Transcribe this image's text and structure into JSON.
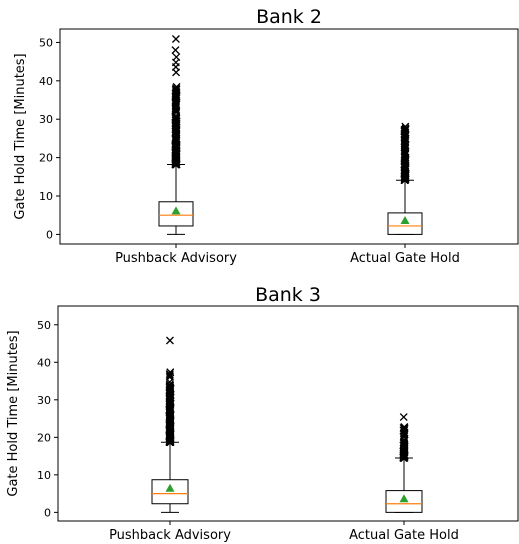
{
  "chart_data": [
    {
      "type": "boxplot",
      "title": "Bank 2",
      "ylabel": "Gate Hold Time [Minutes]",
      "xlabel": "",
      "ylim": [
        -2.5,
        53.5
      ],
      "yticks": [
        0,
        10,
        20,
        30,
        40,
        50
      ],
      "categories": [
        "Pushback Advisory",
        "Actual Gate Hold"
      ],
      "grid": false,
      "boxes": [
        {
          "name": "Pushback Advisory",
          "whisker_low": 0,
          "q1": 2.2,
          "median": 5.0,
          "q3": 8.5,
          "whisker_high": 18.2,
          "mean": 6.0,
          "outlier_range": [
            18.2,
            38.5
          ],
          "outliers": [
            42.2,
            43.6,
            44.8,
            46.2,
            48.0,
            50.9
          ]
        },
        {
          "name": "Actual Gate Hold",
          "whisker_low": 0,
          "q1": 0,
          "median": 2.2,
          "q3": 5.6,
          "whisker_high": 14.1,
          "mean": 3.5,
          "outlier_range": [
            14.1,
            28.2
          ],
          "outliers": []
        }
      ]
    },
    {
      "type": "boxplot",
      "title": "Bank 3",
      "ylabel": "Gate Hold Time [Minutes]",
      "xlabel": "",
      "ylim": [
        -2.3,
        55
      ],
      "yticks": [
        0,
        10,
        20,
        30,
        40,
        50
      ],
      "categories": [
        "Pushback Advisory",
        "Actual Gate Hold"
      ],
      "grid": false,
      "boxes": [
        {
          "name": "Pushback Advisory",
          "whisker_low": 0,
          "q1": 2.3,
          "median": 5.0,
          "q3": 8.7,
          "whisker_high": 18.7,
          "mean": 6.3,
          "outlier_range": [
            18.7,
            38.4
          ],
          "outliers": [
            45.8
          ]
        },
        {
          "name": "Actual Gate Hold",
          "whisker_low": 0,
          "q1": 0,
          "median": 2.3,
          "q3": 5.8,
          "whisker_high": 14.5,
          "mean": 3.5,
          "outlier_range": [
            14.5,
            23.0
          ],
          "outliers": [
            25.4
          ]
        }
      ]
    }
  ],
  "colors": {
    "median": "#ff7f0e",
    "mean": "#2ca02c",
    "outlier": "#000000",
    "box": "#000000"
  }
}
